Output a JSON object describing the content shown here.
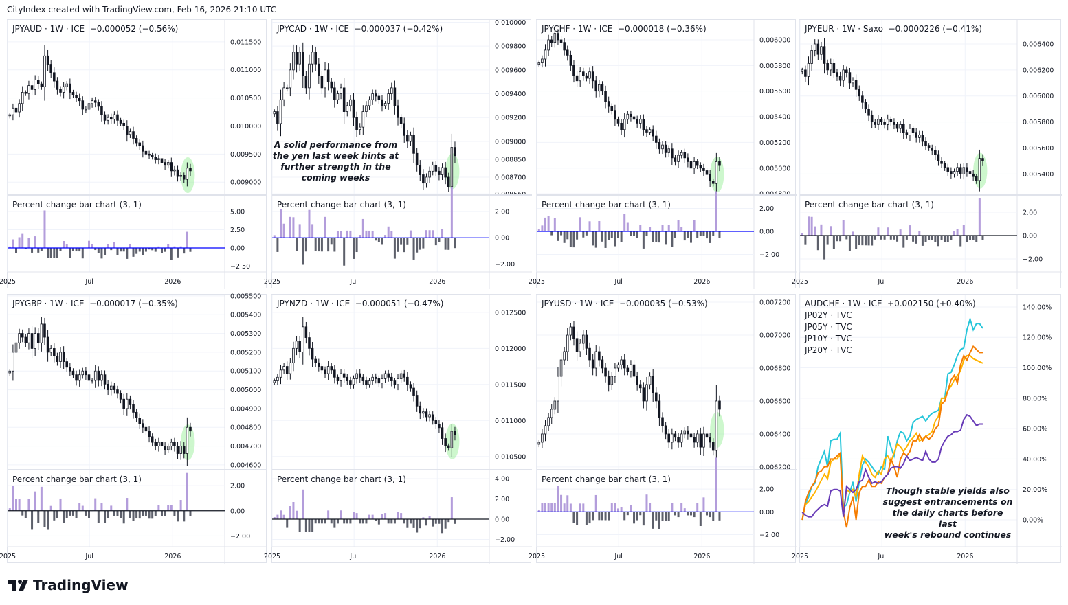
{
  "header": {
    "text": "CityIndex created with TradingView.com, Feb 16, 2026 21:10 UTC"
  },
  "footer": {
    "logo_text": "TradingView"
  },
  "time_axis": {
    "labels": [
      {
        "text": "2025",
        "date": "2025-01-01"
      },
      {
        "text": "Jul",
        "date": "2025-07-01"
      },
      {
        "text": "2026",
        "date": "2026-01-01"
      }
    ],
    "x_range": [
      "2025-01-01",
      "2026-04-26"
    ]
  },
  "colors": {
    "up_bar": "#b39ddb",
    "down_bar": "#5d606b",
    "highlight": "#90ee90",
    "grid": "#f0f3fa",
    "border": "#e0e3eb"
  },
  "indicator_title": "Percent change bar chart (3, 1)",
  "charts": [
    {
      "title": "JPYAUD · 1W · ICE  −0.000052 (−0.56%)",
      "type": "candlestick",
      "first_date": "2025-01-06",
      "last_date": "2026-02-09",
      "y_range": [
        0.00877,
        0.01189
      ],
      "ticks": [
        "0.011500",
        "0.011000",
        "0.010500",
        "0.010000",
        "0.009500",
        "0.009000"
      ],
      "ind_range": [
        -3.3,
        7.26
      ],
      "ind_ticks": [
        "5.00",
        "2.50",
        "0.00",
        "−2.50"
      ],
      "zero_line": "#0000ff",
      "closes": [
        0.0102,
        0.01032,
        0.01025,
        0.0104,
        0.0106,
        0.01058,
        0.01072,
        0.01065,
        0.01082,
        0.01075,
        0.0107,
        0.01125,
        0.0111,
        0.01095,
        0.0108,
        0.01065,
        0.0106,
        0.0107,
        0.01075,
        0.0106,
        0.01055,
        0.0105,
        0.01045,
        0.0103,
        0.0103,
        0.0104,
        0.01045,
        0.01042,
        0.01035,
        0.0102,
        0.0101,
        0.01015,
        0.01012,
        0.0102,
        0.0101,
        0.01005,
        0.01,
        0.00985,
        0.0099,
        0.00978,
        0.0097,
        0.00965,
        0.00955,
        0.0095,
        0.00948,
        0.00945,
        0.0094,
        0.00942,
        0.00935,
        0.0093,
        0.00935,
        0.0092,
        0.00922,
        0.0091,
        0.00912,
        0.00905,
        0.00925,
        0.0092
      ]
    },
    {
      "title": "JPYCAD · 1W · ICE  −0.000037 (−0.42%)",
      "type": "candlestick",
      "first_date": "2025-01-06",
      "last_date": "2026-02-09",
      "y_range": [
        0.00855,
        0.01002
      ],
      "ticks": [
        "0.010000",
        "0.009800",
        "0.009600",
        "0.009400",
        "0.009200",
        "0.009000",
        "0.008850",
        "0.008700",
        "0.008560"
      ],
      "ind_range": [
        -2.6,
        3.25
      ],
      "ind_ticks": [
        "2.00",
        "0.00",
        "−2.00"
      ],
      "zero_line": "#0000ff",
      "note": [
        "A solid performance from",
        "the yen last week hints at",
        "further strength in the",
        "coming weeks"
      ],
      "closes": [
        0.00925,
        0.00915,
        0.00935,
        0.00945,
        0.00945,
        0.0096,
        0.00975,
        0.00965,
        0.00975,
        0.00955,
        0.00945,
        0.00965,
        0.00975,
        0.00965,
        0.00955,
        0.00945,
        0.0096,
        0.0095,
        0.00945,
        0.00935,
        0.0094,
        0.00945,
        0.00925,
        0.0093,
        0.00935,
        0.0092,
        0.0091,
        0.00912,
        0.00925,
        0.0093,
        0.00935,
        0.0094,
        0.00938,
        0.00935,
        0.0093,
        0.00932,
        0.0094,
        0.00945,
        0.0093,
        0.0092,
        0.00915,
        0.00905,
        0.009,
        0.00905,
        0.0089,
        0.0088,
        0.00872,
        0.00865,
        0.0087,
        0.00875,
        0.0088,
        0.00875,
        0.00872,
        0.00878,
        0.0087,
        0.00862,
        0.00895,
        0.00888
      ]
    },
    {
      "title": "JPYCHF · 1W · ICE  −0.000018 (−0.36%)",
      "type": "candlestick",
      "first_date": "2025-01-06",
      "last_date": "2026-02-09",
      "y_range": [
        0.00479,
        0.006155
      ],
      "ticks": [
        "0.006000",
        "0.005800",
        "0.005600",
        "0.005400",
        "0.005200",
        "0.005000",
        "0.004800"
      ],
      "ind_range": [
        -3.52,
        3.16
      ],
      "ind_ticks": [
        "2.00",
        "0.00",
        "−2.00"
      ],
      "zero_line": "#0000ff",
      "closes": [
        0.00582,
        0.00585,
        0.00592,
        0.006,
        0.00598,
        0.00605,
        0.006,
        0.00598,
        0.00592,
        0.00588,
        0.0058,
        0.00572,
        0.00568,
        0.00575,
        0.00572,
        0.0057,
        0.00575,
        0.00568,
        0.0056,
        0.00565,
        0.0056,
        0.00552,
        0.00548,
        0.00545,
        0.00538,
        0.00535,
        0.0053,
        0.00538,
        0.00542,
        0.0054,
        0.00538,
        0.00535,
        0.00538,
        0.0053,
        0.00528,
        0.0053,
        0.00525,
        0.0052,
        0.00515,
        0.00518,
        0.00512,
        0.00515,
        0.00508,
        0.00505,
        0.0051,
        0.00512,
        0.00508,
        0.00505,
        0.005,
        0.00505,
        0.00502,
        0.005,
        0.00498,
        0.00495,
        0.0049,
        0.00488,
        0.00505,
        0.00502
      ]
    },
    {
      "title": "JPYEUR · 1W · Saxo  −0.0000226 (−0.41%)",
      "type": "candlestick",
      "first_date": "2025-01-06",
      "last_date": "2026-02-09",
      "y_range": [
        0.005238,
        0.006585
      ],
      "ticks": [
        "0.006400",
        "0.006200",
        "0.006000",
        "0.005800",
        "0.005600",
        "0.005400"
      ],
      "ind_range": [
        -3.12,
        3.47
      ],
      "ind_ticks": [
        "2.00",
        "0.00",
        "−2.00"
      ],
      "zero_line": "#131722",
      "closes": [
        0.0062,
        0.00615,
        0.00625,
        0.00635,
        0.0064,
        0.00632,
        0.00638,
        0.00625,
        0.0062,
        0.00625,
        0.00618,
        0.00615,
        0.00612,
        0.0062,
        0.00618,
        0.0061,
        0.00612,
        0.00605,
        0.006,
        0.00595,
        0.0059,
        0.00585,
        0.0058,
        0.00578,
        0.00582,
        0.0058,
        0.00578,
        0.00582,
        0.0058,
        0.00578,
        0.00575,
        0.00578,
        0.00572,
        0.0057,
        0.00575,
        0.00572,
        0.00568,
        0.0057,
        0.00565,
        0.00562,
        0.0056,
        0.00558,
        0.00555,
        0.0055,
        0.00548,
        0.00545,
        0.00542,
        0.0054,
        0.00542,
        0.00545,
        0.0054,
        0.00545,
        0.00542,
        0.0054,
        0.00538,
        0.00535,
        0.00552,
        0.0055
      ]
    },
    {
      "title": "JPYGBP · 1W · ICE  −0.000017 (−0.35%)",
      "type": "candlestick",
      "first_date": "2025-01-06",
      "last_date": "2026-02-09",
      "y_range": [
        0.004574,
        0.005507
      ],
      "ticks": [
        "0.005500",
        "0.005400",
        "0.005300",
        "0.005200",
        "0.005100",
        "0.005000",
        "0.004900",
        "0.004800",
        "0.004700",
        "0.004600"
      ],
      "ind_range": [
        -2.85,
        3.26
      ],
      "ind_ticks": [
        "2.00",
        "0.00",
        "−2.00"
      ],
      "zero_line": "#131722",
      "closes": [
        0.0051,
        0.0052,
        0.00525,
        0.0053,
        0.00528,
        0.00525,
        0.0053,
        0.00522,
        0.0053,
        0.00525,
        0.00535,
        0.00528,
        0.0052,
        0.00522,
        0.00518,
        0.00515,
        0.0052,
        0.00515,
        0.00512,
        0.0051,
        0.00508,
        0.00505,
        0.00508,
        0.0051,
        0.00508,
        0.00505,
        0.00505,
        0.0051,
        0.00505,
        0.00508,
        0.00503,
        0.005,
        0.00502,
        0.005,
        0.00498,
        0.00495,
        0.0049,
        0.00495,
        0.00492,
        0.00488,
        0.00485,
        0.00482,
        0.0048,
        0.00478,
        0.00475,
        0.00472,
        0.0047,
        0.00472,
        0.0047,
        0.00468,
        0.0047,
        0.00472,
        0.0047,
        0.00466,
        0.0047,
        0.00466,
        0.0048,
        0.00478
      ]
    },
    {
      "title": "JPYNZD · 1W · ICE  −0.000051 (−0.47%)",
      "type": "candlestick",
      "first_date": "2025-01-06",
      "last_date": "2026-02-09",
      "y_range": [
        0.010317,
        0.012746
      ],
      "ticks": [
        "0.012500",
        "0.012000",
        "0.011500",
        "0.011000",
        "0.010500"
      ],
      "ind_range": [
        -2.71,
        4.88
      ],
      "ind_ticks": [
        "4.00",
        "2.00",
        "0.00",
        "−2.00"
      ],
      "zero_line": "#131722",
      "closes": [
        0.01155,
        0.0116,
        0.0117,
        0.01175,
        0.01165,
        0.0118,
        0.012,
        0.0121,
        0.01195,
        0.0123,
        0.01215,
        0.012,
        0.01185,
        0.0118,
        0.01175,
        0.0117,
        0.01165,
        0.01175,
        0.0117,
        0.0116,
        0.01155,
        0.01165,
        0.0116,
        0.01155,
        0.0115,
        0.01158,
        0.01165,
        0.0116,
        0.01155,
        0.0115,
        0.01155,
        0.0116,
        0.01158,
        0.01152,
        0.01158,
        0.01165,
        0.0116,
        0.01155,
        0.0115,
        0.01158,
        0.01165,
        0.0116,
        0.0115,
        0.01145,
        0.01135,
        0.0112,
        0.0111,
        0.01112,
        0.01105,
        0.01108,
        0.011,
        0.01095,
        0.0109,
        0.01075,
        0.01065,
        0.01062,
        0.01085,
        0.0108
      ]
    },
    {
      "title": "JPYUSD · 1W · ICE  −0.000035 (−0.53%)",
      "type": "candlestick",
      "first_date": "2025-01-06",
      "last_date": "2026-02-09",
      "y_range": [
        0.006183,
        0.007246
      ],
      "ticks": [
        "0.007200",
        "0.007000",
        "0.006800",
        "0.006600",
        "0.006400",
        "0.006200"
      ],
      "ind_range": [
        -3.06,
        3.7
      ],
      "ind_ticks": [
        "2.00",
        "0.00",
        "−2.00"
      ],
      "zero_line": "#0000ff",
      "closes": [
        0.00635,
        0.0064,
        0.00645,
        0.0065,
        0.00655,
        0.0066,
        0.00675,
        0.00685,
        0.0069,
        0.007,
        0.00705,
        0.00698,
        0.0069,
        0.00695,
        0.007,
        0.00692,
        0.00685,
        0.0068,
        0.0069,
        0.00685,
        0.0068,
        0.00675,
        0.0067,
        0.00675,
        0.0068,
        0.00682,
        0.00685,
        0.0068,
        0.00678,
        0.00682,
        0.00675,
        0.0067,
        0.00668,
        0.0066,
        0.0067,
        0.00675,
        0.00665,
        0.0066,
        0.0065,
        0.00645,
        0.0064,
        0.00635,
        0.0064,
        0.00638,
        0.00635,
        0.0064,
        0.00642,
        0.0064,
        0.00638,
        0.00635,
        0.0064,
        0.00632,
        0.0064,
        0.00638,
        0.00635,
        0.0063,
        0.0066,
        0.00655
      ]
    },
    {
      "title": "AUDCHF · 1W · ICE  +0.002150 (+0.40%)",
      "type": "line",
      "first_date": "2025-01-06",
      "last_date": "2026-02-09",
      "y_range": [
        -17.6,
        148.1
      ],
      "ticks": [
        "140.00%",
        "120.00%",
        "100.00%",
        "80.00%",
        "60.00%",
        "40.00%",
        "20.00%",
        "0.00%"
      ],
      "note": [
        "Though stable yields also",
        "suggest entrancements on",
        "the daily charts before last",
        "week's rebound continues"
      ],
      "series": [
        {
          "name": "JP02Y · TVC",
          "color": "#26c6da",
          "values": [
            0,
            10,
            15,
            22,
            24,
            35,
            40,
            45,
            35,
            52,
            53,
            53,
            57,
            8,
            10,
            18,
            25,
            12,
            25,
            36,
            40,
            38,
            35,
            32,
            30,
            35,
            33,
            55,
            48,
            42,
            52,
            58,
            57,
            52,
            55,
            64,
            66,
            67,
            68,
            65,
            68,
            70,
            71,
            72,
            80,
            80,
            96,
            97,
            102,
            108,
            112,
            113,
            125,
            132,
            125,
            129,
            129,
            126
          ]
        },
        {
          "name": "JP05Y · TVC",
          "color": "#ffb300",
          "values": [
            0,
            10,
            12,
            15,
            18,
            22,
            26,
            30,
            27,
            38,
            40,
            40,
            43,
            5,
            20,
            18,
            20,
            15,
            30,
            42,
            38,
            35,
            30,
            28,
            32,
            30,
            40,
            42,
            38,
            44,
            50,
            48,
            45,
            48,
            52,
            54,
            57,
            52,
            53,
            55,
            56,
            58,
            65,
            68,
            80,
            80,
            85,
            88,
            92,
            95,
            98,
            105,
            108,
            108,
            106,
            105,
            104,
            103
          ]
        },
        {
          "name": "JP10Y · TVC",
          "color": "#f57c00",
          "values": [
            0,
            12,
            18,
            22,
            25,
            31,
            32,
            35,
            35,
            40,
            40,
            42,
            44,
            5,
            -5,
            8,
            15,
            0,
            18,
            22,
            22,
            26,
            22,
            22,
            25,
            24,
            28,
            30,
            40,
            35,
            28,
            40,
            44,
            42,
            45,
            52,
            52,
            56,
            52,
            55,
            53,
            55,
            60,
            62,
            76,
            78,
            85,
            92,
            95,
            90,
            102,
            108,
            105,
            110,
            114,
            112,
            110,
            110
          ]
        },
        {
          "name": "JP20Y · TVC",
          "color": "#673ab7",
          "values": [
            5,
            3,
            2,
            2,
            5,
            7,
            9,
            10,
            9,
            19,
            20,
            20,
            19,
            2,
            22,
            20,
            18,
            20,
            25,
            26,
            33,
            28,
            24,
            25,
            24,
            25,
            28,
            30,
            34,
            35,
            35,
            34,
            37,
            42,
            39,
            40,
            41,
            40,
            39,
            45,
            40,
            38,
            38,
            40,
            48,
            52,
            55,
            56,
            58,
            58,
            59,
            66,
            69,
            68,
            65,
            62,
            63,
            63
          ]
        }
      ]
    }
  ]
}
